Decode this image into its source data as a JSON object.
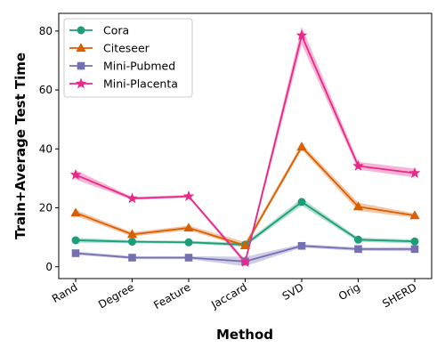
{
  "chart_data": {
    "type": "line",
    "title": "",
    "xlabel": "Method",
    "ylabel": "Train+Average Test Time",
    "categories": [
      "Rand",
      "Degree",
      "Feature",
      "Jaccard",
      "SVD",
      "Orig",
      "SHERD"
    ],
    "ylim": [
      -4,
      86
    ],
    "yticks": [
      0,
      20,
      40,
      60,
      80
    ],
    "grid": false,
    "legend": "top-left",
    "series": [
      {
        "name": "Cora",
        "color": "#1b9e77",
        "marker": "circle",
        "values": [
          9.0,
          8.5,
          8.3,
          7.5,
          22.0,
          9.2,
          8.6
        ],
        "lower": [
          8.2,
          8.0,
          7.8,
          6.8,
          20.8,
          8.5,
          7.9
        ],
        "upper": [
          9.8,
          9.0,
          8.8,
          8.2,
          23.2,
          9.9,
          9.3
        ]
      },
      {
        "name": "Citeseer",
        "color": "#d95f02",
        "marker": "triangle",
        "values": [
          18.3,
          11.0,
          13.2,
          7.2,
          40.7,
          20.4,
          17.4
        ],
        "lower": [
          17.3,
          10.3,
          12.4,
          6.5,
          39.7,
          19.0,
          16.7
        ],
        "upper": [
          19.3,
          11.7,
          14.0,
          8.4,
          41.7,
          21.8,
          18.1
        ]
      },
      {
        "name": "Mini-Pubmed",
        "color": "#7570b3",
        "marker": "square",
        "values": [
          4.6,
          3.1,
          3.1,
          1.8,
          7.1,
          6.0,
          6.0
        ],
        "lower": [
          4.0,
          2.6,
          2.6,
          0.2,
          6.5,
          5.4,
          5.3
        ],
        "upper": [
          5.2,
          3.6,
          3.6,
          3.4,
          7.7,
          6.6,
          6.7
        ]
      },
      {
        "name": "Mini-Placenta",
        "color": "#e7298a",
        "marker": "star",
        "values": [
          31.2,
          23.2,
          23.9,
          1.6,
          78.5,
          34.2,
          31.8
        ],
        "lower": [
          29.6,
          22.7,
          23.4,
          0.8,
          75.5,
          33.0,
          30.3
        ],
        "upper": [
          32.8,
          23.7,
          24.4,
          2.4,
          81.5,
          35.6,
          33.3
        ]
      }
    ]
  }
}
